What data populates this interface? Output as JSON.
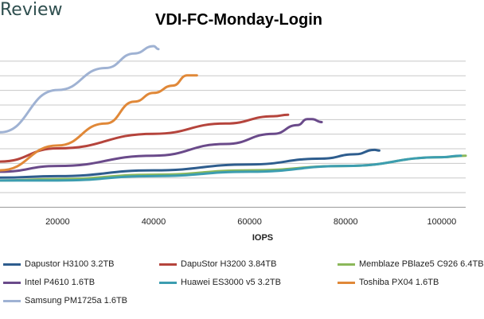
{
  "header": {
    "logo_text": "Review"
  },
  "chart_data": {
    "type": "line",
    "title": "VDI-FC-Monday-Login",
    "xlabel": "IOPS",
    "ylabel": "",
    "xlim": [
      8000,
      105000
    ],
    "ylim": [
      0,
      11
    ],
    "x_ticks": [
      20000,
      40000,
      60000,
      80000,
      100000
    ],
    "x_tick_labels": [
      "20000",
      "40000",
      "60000",
      "80000",
      "100000"
    ],
    "y_gridlines": [
      0,
      1,
      2,
      3,
      4,
      5,
      6,
      7,
      8,
      9,
      10
    ],
    "grid": true,
    "legend_position": "bottom",
    "series": [
      {
        "name": "Dapustor H3100 3.2TB",
        "color": "#2e5d8e",
        "x": [
          8000,
          20000,
          40000,
          60000,
          75000,
          82000,
          86000,
          87000
        ],
        "y": [
          2.0,
          2.1,
          2.5,
          2.9,
          3.3,
          3.6,
          3.9,
          3.85
        ]
      },
      {
        "name": "DapuStor H3200 3.84TB",
        "color": "#b5443c",
        "x": [
          8000,
          20000,
          40000,
          55000,
          65000,
          68000
        ],
        "y": [
          3.1,
          4.0,
          5.0,
          5.7,
          6.2,
          6.3
        ]
      },
      {
        "name": "Memblaze PBlaze5 C926 6.4TB",
        "color": "#8bb85a",
        "x": [
          8000,
          20000,
          40000,
          60000,
          80000,
          100000,
          105000
        ],
        "y": [
          1.8,
          1.9,
          2.2,
          2.5,
          2.8,
          3.4,
          3.5
        ]
      },
      {
        "name": "Intel P4610 1.6TB",
        "color": "#6a4a8a",
        "x": [
          8000,
          20000,
          40000,
          55000,
          65000,
          70000,
          72000,
          73000,
          75000
        ],
        "y": [
          2.4,
          2.8,
          3.5,
          4.3,
          5.0,
          5.6,
          6.0,
          6.0,
          5.8
        ]
      },
      {
        "name": "Huawei ES3000 v5 3.2TB",
        "color": "#3c9db0",
        "x": [
          8000,
          20000,
          40000,
          60000,
          80000,
          100000,
          104000
        ],
        "y": [
          1.8,
          1.8,
          2.1,
          2.4,
          2.8,
          3.4,
          3.5
        ]
      },
      {
        "name": "Toshiba PX04 1.6TB",
        "color": "#e08838",
        "x": [
          8000,
          20000,
          30000,
          36000,
          40000,
          44000,
          47000,
          49000
        ],
        "y": [
          2.5,
          4.2,
          5.7,
          7.2,
          7.8,
          8.3,
          9.0,
          9.0
        ]
      },
      {
        "name": "Samsung PM1725a 1.6TB",
        "color": "#9fb2d3",
        "x": [
          8000,
          20000,
          30000,
          36000,
          40000,
          41000
        ],
        "y": [
          5.1,
          8.0,
          9.5,
          10.5,
          11.0,
          10.8
        ]
      }
    ]
  }
}
